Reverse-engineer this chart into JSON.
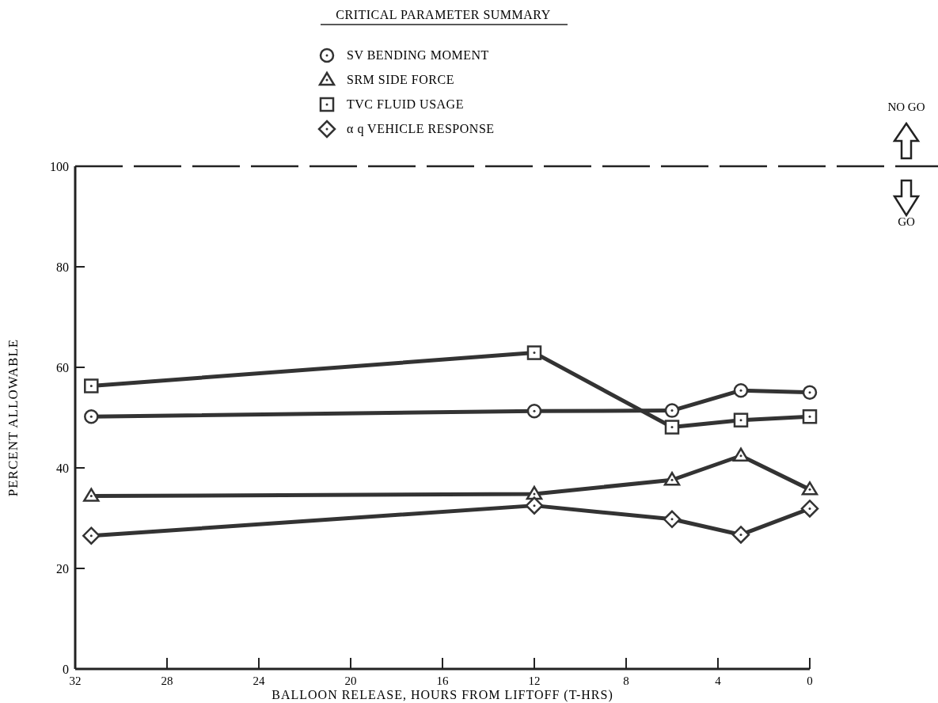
{
  "chart_data": {
    "type": "line",
    "legend_title": "CRITICAL PARAMETER SUMMARY",
    "xlabel": "BALLOON RELEASE, HOURS FROM LIFTOFF (T-HRS)",
    "ylabel": "PERCENT ALLOWABLE",
    "x": [
      31.3,
      12,
      6,
      3,
      0
    ],
    "series": [
      {
        "name": "SV BENDING MOMENT",
        "color": "#333333",
        "marker": "circle",
        "values": [
          50.2,
          51.3,
          51.4,
          55.4,
          55.0
        ]
      },
      {
        "name": "SRM SIDE FORCE",
        "color": "#333333",
        "marker": "triangle",
        "values": [
          34.4,
          34.8,
          37.6,
          42.4,
          35.7
        ]
      },
      {
        "name": "TVC FLUID USAGE",
        "color": "#333333",
        "marker": "square",
        "values": [
          56.3,
          62.9,
          48.1,
          49.5,
          50.2
        ]
      },
      {
        "name": "α q VEHICLE RESPONSE",
        "color": "#333333",
        "marker": "diamond",
        "values": [
          26.5,
          32.5,
          29.8,
          26.7,
          31.9
        ]
      }
    ],
    "xlim": [
      32,
      0
    ],
    "xticks": [
      32,
      28,
      24,
      20,
      16,
      12,
      8,
      4,
      0
    ],
    "ylim": [
      0,
      100
    ],
    "yticks": [
      0,
      20,
      40,
      60,
      80,
      100
    ],
    "ref_lines": [
      {
        "axis": "y",
        "value": 100,
        "line_style": "dashed",
        "color": "#222222"
      }
    ],
    "annotations": [
      "NO GO",
      "GO"
    ],
    "legend": "top",
    "grid": false,
    "line_style": "solid"
  }
}
